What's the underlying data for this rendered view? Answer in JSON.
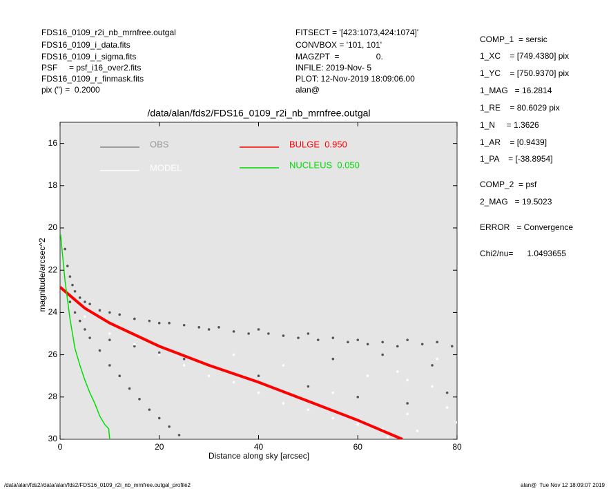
{
  "header": {
    "left": [
      "FDS16_0109_r2i_nb_mrnfree.outgal",
      "FDS16_0109_i_data.fits",
      "FDS16_0109_i_sigma.fits",
      "PSF     = psf_i16_over2.fits",
      "FDS16_0109_r_finmask.fits",
      "pix (\") =  0.2000"
    ],
    "middle": [
      "FITSECT = '[423:1073,424:1074]'",
      "CONVBOX = '101, 101'",
      "MAGZPT  =                0.",
      "INFILE: 2019-Nov- 5",
      "PLOT: 12-Nov-2019 18:09:06.00",
      "alan@"
    ],
    "right": [
      "COMP_1  = sersic",
      "1_XC    = [749.4380] pix",
      "1_YC    = [750.9370] pix",
      "1_MAG   = 16.2814",
      "1_RE    = 80.6029 pix",
      "1_N     = 1.3626",
      "1_AR    = [0.9439]",
      "1_PA    = [-38.8954]",
      "COMP_2  = psf",
      "2_MAG   = 19.5023",
      "ERROR   = Convergence",
      "Chi2/nu=      1.0493655"
    ]
  },
  "footer": {
    "left": "/data/alan/fds2//data/alan/fds2/FDS16_0109_r2i_nb_mrnfree.outgal_profile2",
    "right": "alan@  Tue Nov 12 18:09:07 2019"
  },
  "chart_data": {
    "type": "scatter",
    "title": "/data/alan/fds2/FDS16_0109_r2i_nb_mrnfree.outgal",
    "x_label": "Distance along sky [arcsec]",
    "y_label": "magnitude/arcsec^2",
    "xlim": [
      0,
      80
    ],
    "xticks": [
      0,
      20,
      40,
      60,
      80
    ],
    "ylim": [
      15,
      30
    ],
    "yticks": [
      16,
      18,
      20,
      22,
      24,
      26,
      28,
      30
    ],
    "y_inverted": true,
    "background": "#e5e5e5",
    "series": [
      {
        "name": "OBS",
        "color": "#555555",
        "style": "points",
        "x": [
          1,
          1.5,
          2,
          2.5,
          3,
          4,
          5,
          6,
          8,
          10,
          12,
          15,
          18,
          20,
          22,
          25,
          28,
          30,
          32,
          35,
          38,
          40,
          42,
          45,
          48,
          50,
          52,
          55,
          58,
          60,
          62,
          65,
          68,
          70,
          73,
          76,
          79,
          2,
          3,
          4,
          5,
          6,
          8,
          10,
          12,
          14,
          16,
          18,
          20,
          22,
          24,
          10,
          15,
          20,
          25,
          30,
          40,
          50,
          60,
          70,
          78,
          55,
          65,
          75
        ],
        "values": [
          21.0,
          21.8,
          22.3,
          22.7,
          23.0,
          23.3,
          23.5,
          23.6,
          23.9,
          24.0,
          24.1,
          24.3,
          24.4,
          24.5,
          24.5,
          24.6,
          24.7,
          24.8,
          24.7,
          24.9,
          25.0,
          24.8,
          25.0,
          25.1,
          25.2,
          25.0,
          25.3,
          25.2,
          25.4,
          25.3,
          25.5,
          25.4,
          25.6,
          25.3,
          25.5,
          25.4,
          25.6,
          23.5,
          24.0,
          24.4,
          24.8,
          25.2,
          25.8,
          26.5,
          27.0,
          27.6,
          28.1,
          28.6,
          29.0,
          29.4,
          29.8,
          25.3,
          25.6,
          25.9,
          26.2,
          26.5,
          27.0,
          27.5,
          28.0,
          28.3,
          27.8,
          26.2,
          26.0,
          26.5
        ]
      },
      {
        "name": "MODEL",
        "color": "#ffffff",
        "style": "points",
        "x": [
          5,
          10,
          15,
          20,
          25,
          30,
          35,
          40,
          45,
          50,
          55,
          60,
          65,
          70,
          72,
          75,
          78,
          62,
          68,
          76,
          45,
          35,
          55,
          70,
          80,
          66
        ],
        "values": [
          24.2,
          25.0,
          25.5,
          26.0,
          26.5,
          27.0,
          27.3,
          27.8,
          28.3,
          28.6,
          29.0,
          29.3,
          29.5,
          28.8,
          29.6,
          27.5,
          28.5,
          27.0,
          26.8,
          26.2,
          26.5,
          26.0,
          27.8,
          27.2,
          29.2,
          29.9
        ]
      },
      {
        "name": "BULGE  0.950",
        "color": "#ff0000",
        "style": "line",
        "x": [
          0,
          1,
          5,
          10,
          20,
          30,
          40,
          50,
          60,
          69
        ],
        "values": [
          22.8,
          23.0,
          23.8,
          24.5,
          25.6,
          26.5,
          27.3,
          28.2,
          29.1,
          30.0
        ]
      },
      {
        "name": "NUCLEUS  0.050",
        "color": "#00dd00",
        "style": "line",
        "x": [
          0.1,
          1,
          2,
          3,
          4,
          5,
          6,
          7,
          8,
          9,
          9.8,
          10
        ],
        "values": [
          20.3,
          22.5,
          24.3,
          25.7,
          26.5,
          27.2,
          27.8,
          28.3,
          28.9,
          29.3,
          29.5,
          30.0
        ]
      }
    ]
  }
}
